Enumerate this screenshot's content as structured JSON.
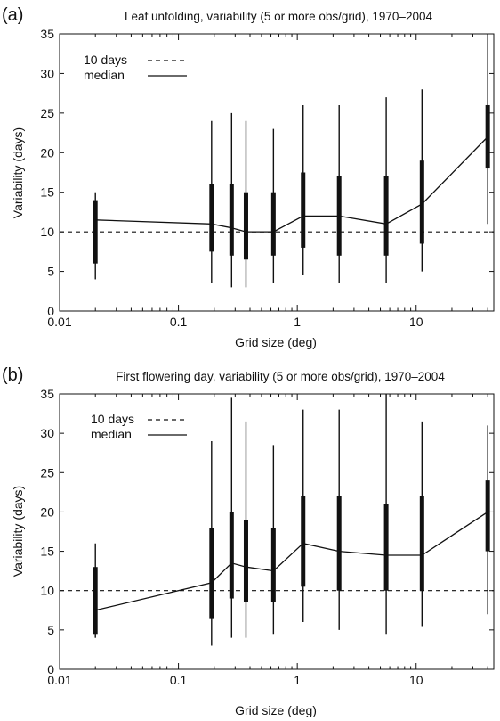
{
  "chart_data": [
    {
      "type": "box",
      "panel_label": "(a)",
      "title": "Leaf unfolding, variability (5 or more obs/grid), 1970–2004",
      "xlabel": "Grid size (deg)",
      "ylabel": "Variability (days)",
      "xscale": "log",
      "xlim": [
        0.01,
        45
      ],
      "ylim": [
        0,
        35
      ],
      "xticks": [
        0.01,
        0.1,
        1,
        10
      ],
      "xtick_labels": [
        "0.01",
        "0.1",
        "1",
        "10"
      ],
      "yticks": [
        0,
        5,
        10,
        15,
        20,
        25,
        30,
        35
      ],
      "ytick_labels": [
        "0",
        "5",
        "10",
        "15",
        "20",
        "25",
        "30",
        "35"
      ],
      "grid": false,
      "legend": {
        "placement": "top-left",
        "entries": [
          {
            "label": "10 days",
            "style": "dashed"
          },
          {
            "label": "median",
            "style": "solid"
          }
        ]
      },
      "reference_line": {
        "name": "10 days",
        "y": 10
      },
      "x": [
        0.02,
        0.19,
        0.28,
        0.37,
        0.63,
        1.12,
        2.25,
        5.6,
        11.2,
        40
      ],
      "whisker_low": [
        4,
        3.5,
        3,
        3,
        3.5,
        4.5,
        3.5,
        3.5,
        5,
        11
      ],
      "box_low": [
        6,
        7.5,
        7,
        6.5,
        7,
        8,
        7,
        7,
        8.5,
        18
      ],
      "median": [
        11.5,
        11,
        10.5,
        10,
        10,
        12,
        12,
        11,
        13.5,
        22
      ],
      "box_high": [
        14,
        16,
        16,
        15,
        15,
        17.5,
        17,
        17,
        19,
        26
      ],
      "whisker_high": [
        15,
        24,
        25,
        24,
        23,
        26,
        26,
        27,
        28,
        35
      ]
    },
    {
      "type": "box",
      "panel_label": "(b)",
      "title": "First flowering day, variability (5 or more obs/grid), 1970–2004",
      "xlabel": "Grid size (deg)",
      "ylabel": "Variability (days)",
      "xscale": "log",
      "xlim": [
        0.01,
        45
      ],
      "ylim": [
        0,
        35
      ],
      "xticks": [
        0.01,
        0.1,
        1,
        10
      ],
      "xtick_labels": [
        "0.01",
        "0.1",
        "1",
        "10"
      ],
      "yticks": [
        0,
        5,
        10,
        15,
        20,
        25,
        30,
        35
      ],
      "ytick_labels": [
        "0",
        "5",
        "10",
        "15",
        "20",
        "25",
        "30",
        "35"
      ],
      "grid": false,
      "legend": {
        "placement": "top-left",
        "entries": [
          {
            "label": "10 days",
            "style": "dashed"
          },
          {
            "label": "median",
            "style": "solid"
          }
        ]
      },
      "reference_line": {
        "name": "10 days",
        "y": 10
      },
      "x": [
        0.02,
        0.19,
        0.28,
        0.37,
        0.63,
        1.12,
        2.25,
        5.6,
        11.2,
        40
      ],
      "whisker_low": [
        4,
        3,
        4,
        4,
        4.5,
        6,
        5,
        4.5,
        5.5,
        7
      ],
      "box_low": [
        4.5,
        6.5,
        9,
        8.5,
        8.5,
        10.5,
        10,
        10,
        10,
        15
      ],
      "median": [
        7.5,
        11,
        13.5,
        13,
        12.5,
        16,
        15,
        14.5,
        14.5,
        20
      ],
      "box_high": [
        13,
        18,
        20,
        19,
        18,
        22,
        22,
        21,
        22,
        24
      ],
      "whisker_high": [
        16,
        29,
        34.5,
        31.5,
        28.5,
        33,
        33,
        35,
        31.5,
        31
      ]
    }
  ]
}
